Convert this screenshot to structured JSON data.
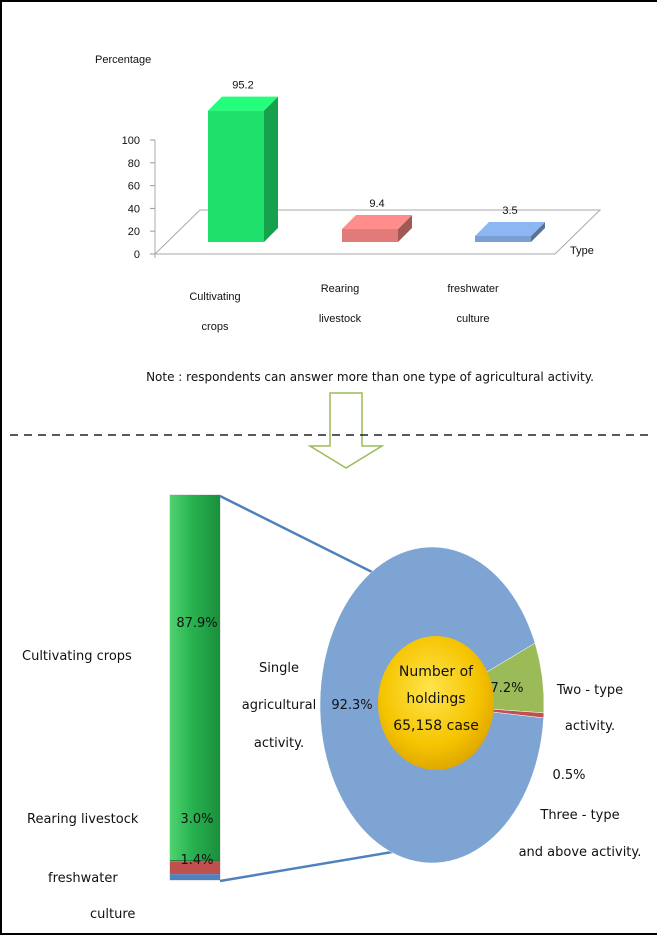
{
  "chart_data": [
    {
      "type": "bar",
      "ylabel": "Percentage",
      "xlabel": "Type",
      "categories": [
        [
          "Cultivating",
          "crops"
        ],
        [
          "Rearing",
          "livestock"
        ],
        [
          "freshwater",
          "culture"
        ]
      ],
      "values": [
        95.2,
        9.4,
        3.5
      ],
      "data_labels": [
        "95.2",
        "9.4",
        "3.5"
      ],
      "colors": [
        "#1ee06a",
        "#e07b7a",
        "#7a9fd3"
      ],
      "ylim": [
        0,
        100
      ],
      "yticks": [
        0,
        20,
        40,
        60,
        80,
        100
      ],
      "ytick_labels": [
        "0",
        "20",
        "40",
        "60",
        "80",
        "100"
      ],
      "grid": false,
      "style": "3d-column"
    },
    {
      "type": "bar",
      "stacked": true,
      "categories": [
        "Cultivating crops",
        "Rearing livestock",
        "freshwater culture"
      ],
      "values": [
        87.9,
        3.0,
        1.4
      ],
      "data_labels": [
        "87.9%",
        "3.0%",
        "1.4%"
      ],
      "colors": [
        "#22a84a",
        "#c0504d",
        "#4f81bd"
      ]
    },
    {
      "type": "pie",
      "labels": [
        [
          "Single",
          "agricultural",
          "activity."
        ],
        [
          "Two - type",
          "activity."
        ],
        [
          "Three - type",
          "and above activity."
        ]
      ],
      "values": [
        92.3,
        7.2,
        0.5
      ],
      "data_labels": [
        "92.3%",
        "7.2%",
        "0.5%"
      ],
      "colors": [
        "#7ea4d3",
        "#9bbb59",
        "#c0504d"
      ],
      "center_label": [
        "Number of",
        "holdings",
        "65,158 case"
      ]
    }
  ],
  "note": "Note : respondents can answer  more than one type of agricultural activity.",
  "left_labels": {
    "crops": "Cultivating  crops",
    "livestock": "Rearing  livestock",
    "fresh1": "freshwater",
    "fresh2": "culture"
  }
}
